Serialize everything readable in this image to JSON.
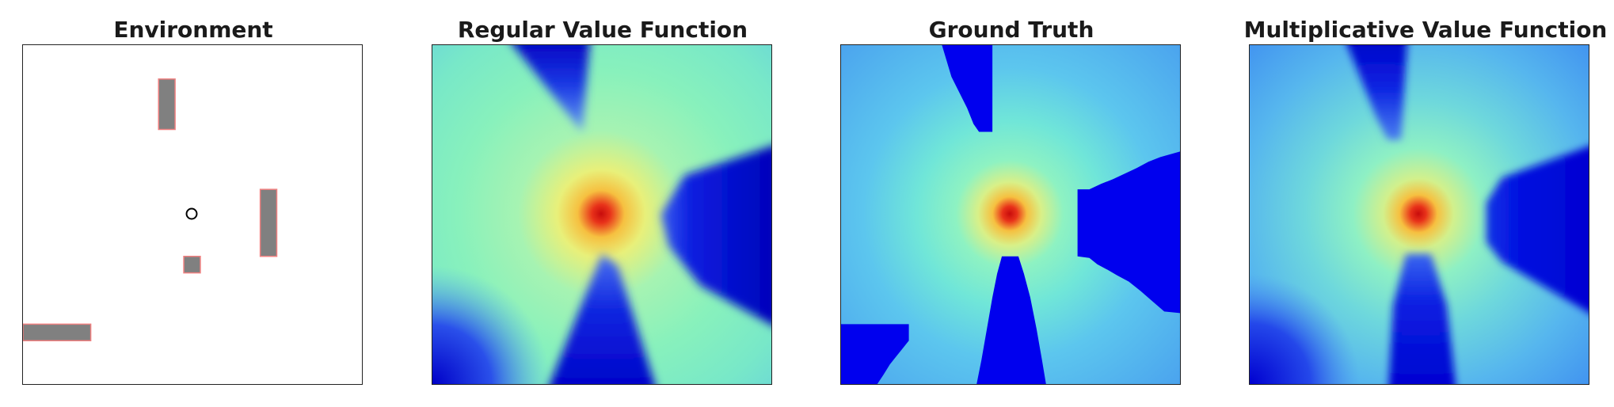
{
  "panels": [
    {
      "title": "Environment"
    },
    {
      "title": "Regular Value Function"
    },
    {
      "title": "Ground Truth"
    },
    {
      "title": "Multiplicative Value Function"
    }
  ],
  "environment": {
    "obstacle_fill": "#808080",
    "obstacle_edge": "#f08080",
    "goal_marker": "circle"
  },
  "colormap": {
    "name": "jet",
    "low": "#0000e0",
    "mid_low": "#4aa6ee",
    "mid": "#86f3c2",
    "mid_high": "#f2f060",
    "high": "#d21818"
  }
}
